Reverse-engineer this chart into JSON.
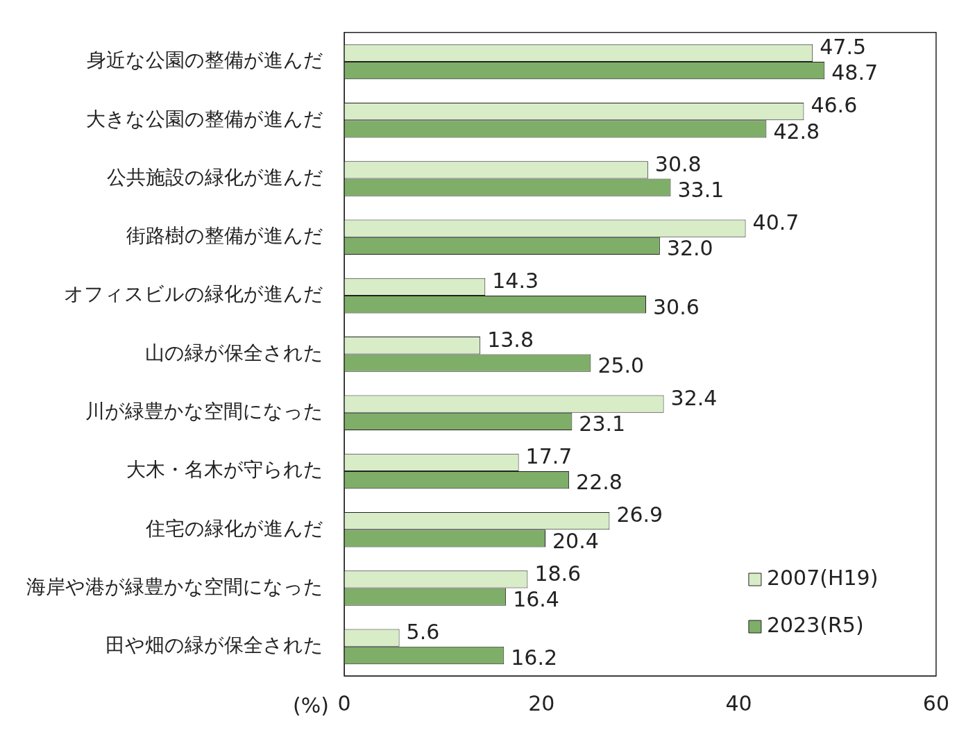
{
  "chart_data": {
    "type": "bar",
    "orientation": "horizontal",
    "xlabel": "(%)",
    "categories": [
      "身近な公園の整備が進んだ",
      "大きな公園の整備が進んだ",
      "公共施設の緑化が進んだ",
      "街路樹の整備が進んだ",
      "オフィスビルの緑化が進んだ",
      "山の緑が保全された",
      "川が緑豊かな空間になった",
      "大木・名木が守られた",
      "住宅の緑化が進んだ",
      "海岸や港が緑豊かな空間になった",
      "田や畑の緑が保全された"
    ],
    "series": [
      {
        "name": "2007(H19)",
        "color": "#d8ecc8",
        "values": [
          47.5,
          46.6,
          30.8,
          40.7,
          14.3,
          13.8,
          32.4,
          17.7,
          26.9,
          18.6,
          5.6
        ],
        "value_labels": [
          "47.5",
          "46.6",
          "30.8",
          "40.7",
          "14.3",
          "13.8",
          "32.4",
          "17.7",
          "26.9",
          "18.6",
          "5.6"
        ]
      },
      {
        "name": "2023(R5)",
        "color": "#7fae68",
        "values": [
          48.7,
          42.8,
          33.1,
          32.0,
          30.6,
          25.0,
          23.1,
          22.8,
          20.4,
          16.4,
          16.2
        ],
        "value_labels": [
          "48.7",
          "42.8",
          "33.1",
          "32.0",
          "30.6",
          "25.0",
          "23.1",
          "22.8",
          "20.4",
          "16.4",
          "16.2"
        ]
      }
    ],
    "xlim": [
      0,
      60
    ],
    "xticks": [
      0,
      20,
      40,
      60
    ],
    "grid": false,
    "legend": "bottom right"
  }
}
